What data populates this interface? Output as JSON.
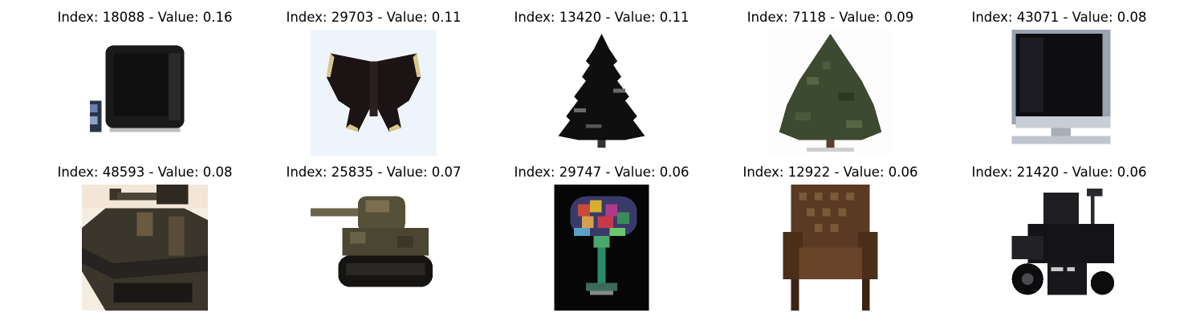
{
  "panels": [
    {
      "title": "Index: 18088 - Value: 0.16",
      "index": 18088,
      "value": 0.16,
      "subject": "crt-television-with-remote"
    },
    {
      "title": "Index: 29703 - Value: 0.11",
      "index": 29703,
      "value": 0.11,
      "subject": "butterfly"
    },
    {
      "title": "Index: 13420 - Value: 0.11",
      "index": 13420,
      "value": 0.11,
      "subject": "pine-tree-silhouette"
    },
    {
      "title": "Index: 7118 - Value: 0.09",
      "index": 7118,
      "value": 0.09,
      "subject": "evergreen-tree"
    },
    {
      "title": "Index: 43071 - Value: 0.08",
      "index": 43071,
      "value": 0.08,
      "subject": "flat-screen-monitor"
    },
    {
      "title": "Index: 48593 - Value: 0.08",
      "index": 48593,
      "value": 0.08,
      "subject": "tank-closeup"
    },
    {
      "title": "Index: 25835 - Value: 0.07",
      "index": 25835,
      "value": 0.07,
      "subject": "tank"
    },
    {
      "title": "Index: 29747 - Value: 0.06",
      "index": 29747,
      "value": 0.06,
      "subject": "colorful-glass-on-black"
    },
    {
      "title": "Index: 12922 - Value: 0.06",
      "index": 12922,
      "value": 0.06,
      "subject": "wingback-chair"
    },
    {
      "title": "Index: 21420 - Value: 0.06",
      "index": 21420,
      "value": 0.06,
      "subject": "riding-lawn-mower"
    }
  ]
}
